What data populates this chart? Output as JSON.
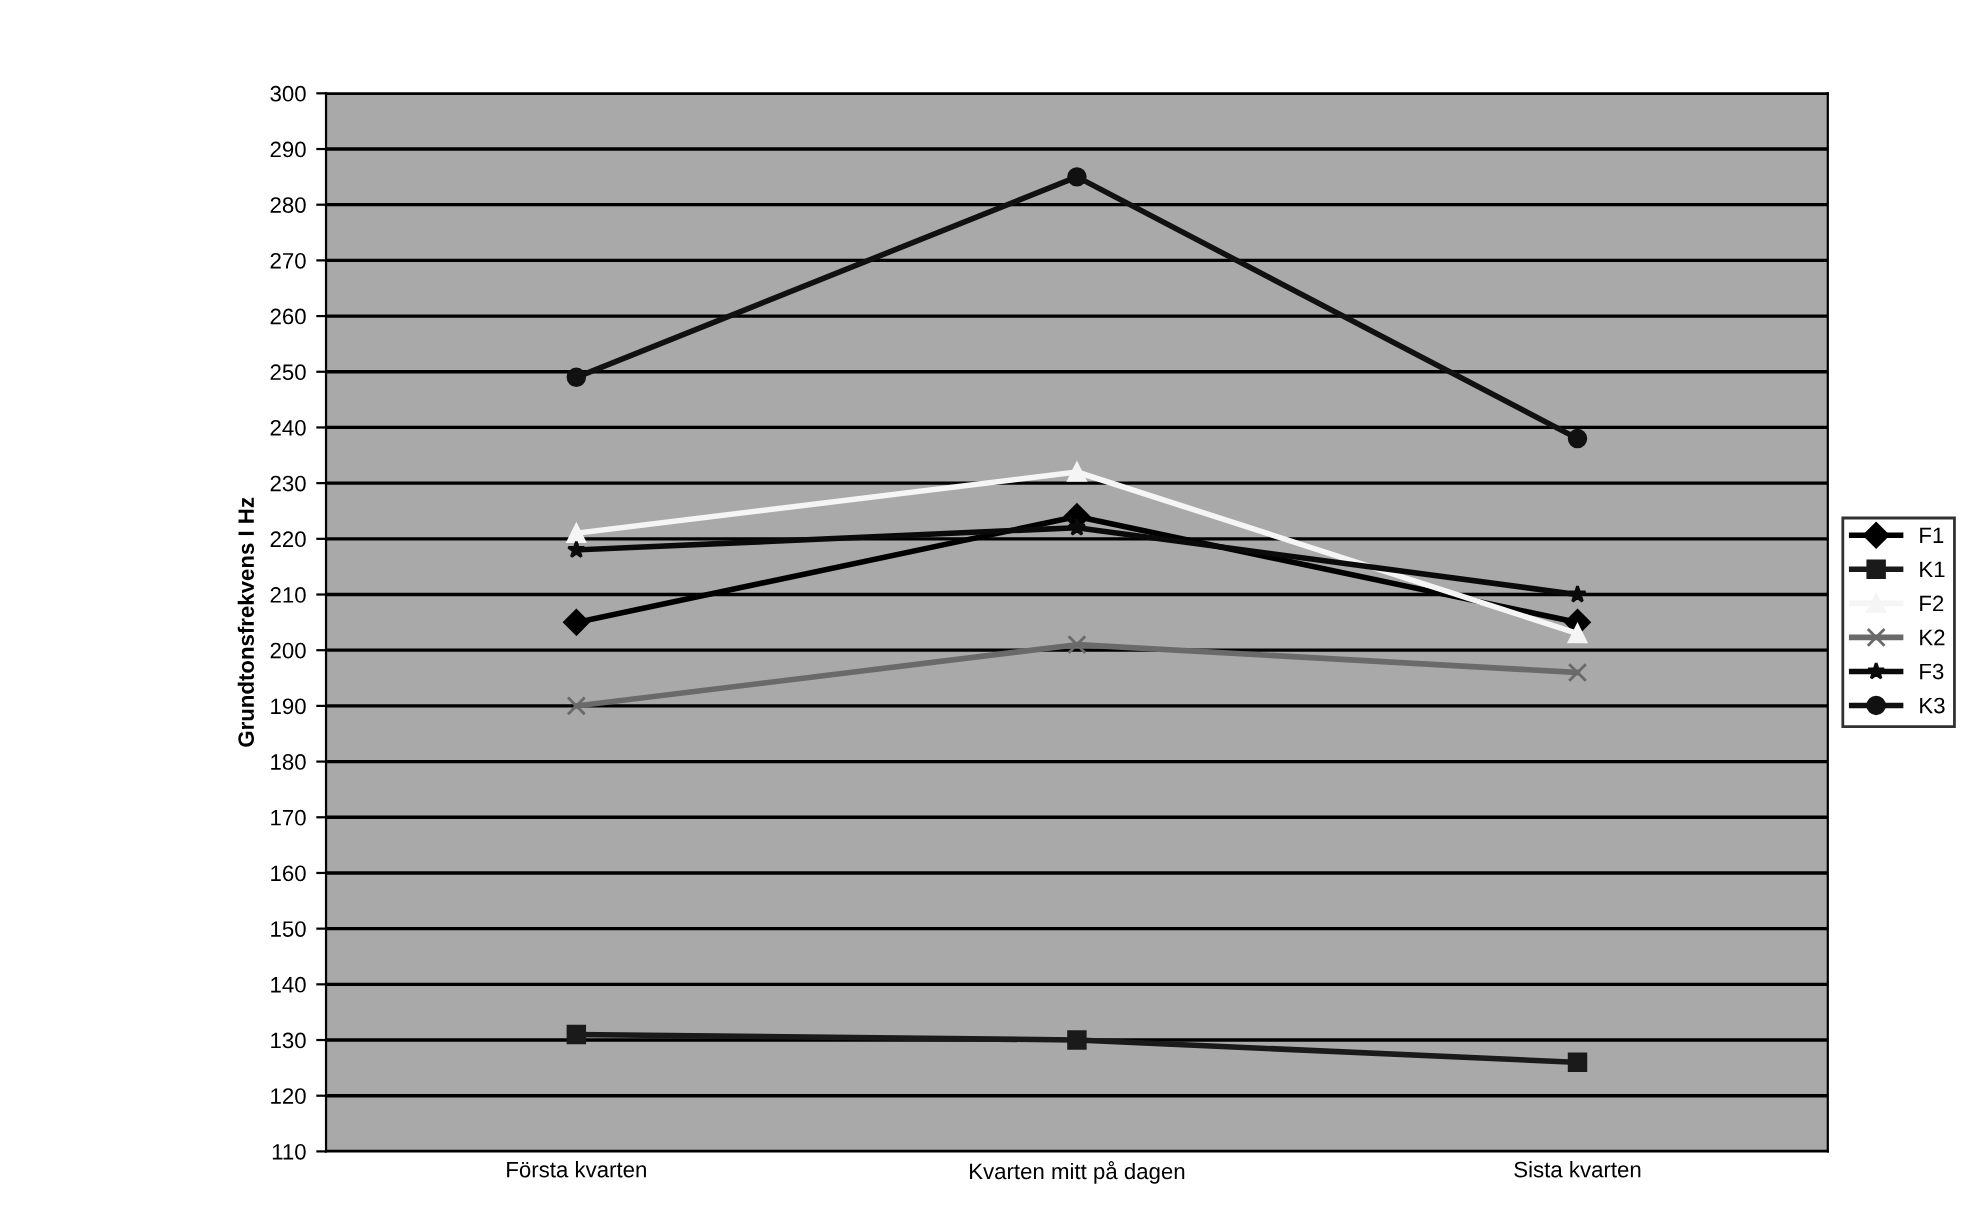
{
  "chart_data": {
    "type": "line",
    "ylabel": "Grundtonsfrekvens I Hz",
    "categories": [
      "Första kvarten",
      "Kvarten mitt på dagen",
      "Sista kvarten"
    ],
    "series": [
      {
        "name": "F1",
        "color": "#000000",
        "marker": "diamond",
        "values": [
          205,
          224,
          205
        ]
      },
      {
        "name": "K1",
        "color": "#1a1a1a",
        "marker": "square",
        "values": [
          131,
          130,
          126
        ]
      },
      {
        "name": "F2",
        "color": "#f5f5f5",
        "marker": "triangle",
        "values": [
          221,
          232,
          203
        ]
      },
      {
        "name": "K2",
        "color": "#6a6a6a",
        "marker": "cross",
        "values": [
          190,
          201,
          196
        ]
      },
      {
        "name": "F3",
        "color": "#0a0a0a",
        "marker": "star",
        "values": [
          218,
          222,
          210
        ]
      },
      {
        "name": "K3",
        "color": "#111111",
        "marker": "circle",
        "values": [
          249,
          285,
          238
        ]
      }
    ],
    "ylim": [
      110,
      300
    ],
    "yticks": [
      110,
      120,
      130,
      140,
      150,
      160,
      170,
      180,
      190,
      200,
      210,
      220,
      230,
      240,
      250,
      260,
      270,
      280,
      290,
      300
    ],
    "grid": "y",
    "legend": "right"
  }
}
